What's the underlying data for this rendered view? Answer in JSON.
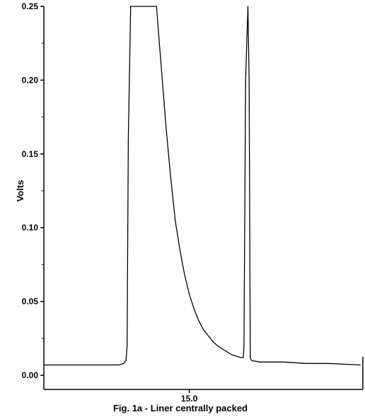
{
  "chart_data": {
    "type": "line",
    "title": "",
    "caption": "Fig. 1a - Liner centrally packed",
    "xlabel": "",
    "ylabel": "Volts",
    "xlim": [
      8.8,
      22.4
    ],
    "ylim": [
      0.0,
      0.25
    ],
    "x_ticks": [
      {
        "value": 15.0,
        "label": "15.0"
      }
    ],
    "y_ticks": [
      {
        "value": 0.0,
        "label": "0.00"
      },
      {
        "value": 0.05,
        "label": "0.05"
      },
      {
        "value": 0.1,
        "label": "0.10"
      },
      {
        "value": 0.15,
        "label": "0.15"
      },
      {
        "value": 0.2,
        "label": "0.20"
      },
      {
        "value": 0.25,
        "label": "0.25"
      }
    ],
    "grid": false,
    "legend": "none",
    "colors": {
      "line": "#000000",
      "axis": "#000000"
    },
    "series": [
      {
        "x": [
          8.8,
          12.0,
          12.2,
          12.3,
          12.35,
          12.4,
          12.5,
          13.6,
          13.8,
          14.0,
          14.2,
          14.4,
          14.6,
          14.8,
          15.0,
          15.2,
          15.4,
          15.6,
          15.8,
          16.0,
          16.2,
          16.4,
          16.6,
          16.8,
          17.0,
          17.2,
          17.3,
          17.33,
          17.4,
          17.5,
          17.55,
          17.6,
          17.65,
          18.0,
          19.0,
          20.0,
          21.0,
          22.3
        ],
        "y": [
          0.007,
          0.007,
          0.008,
          0.01,
          0.02,
          0.16,
          0.25,
          0.25,
          0.21,
          0.17,
          0.135,
          0.105,
          0.085,
          0.068,
          0.055,
          0.045,
          0.037,
          0.031,
          0.027,
          0.023,
          0.02,
          0.018,
          0.016,
          0.014,
          0.013,
          0.012,
          0.012,
          0.02,
          0.2,
          0.25,
          0.2,
          0.012,
          0.01,
          0.009,
          0.009,
          0.008,
          0.008,
          0.007
        ]
      }
    ]
  }
}
